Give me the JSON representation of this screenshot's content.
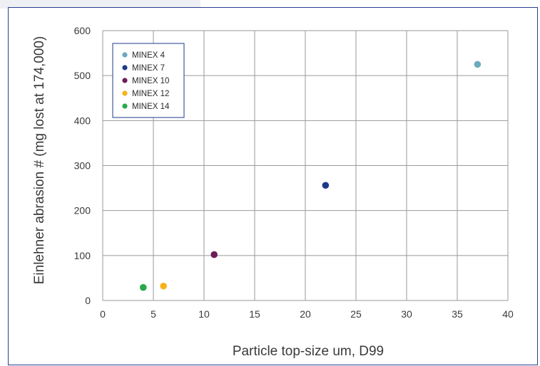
{
  "chart_data": {
    "type": "scatter",
    "title": "",
    "xlabel": "Particle top-size um, D99",
    "ylabel": "Einlehner abrasion # (mg lost at 174,000)",
    "xlim": [
      0,
      40
    ],
    "ylim": [
      0,
      600
    ],
    "xticks": [
      "0",
      "5",
      "10",
      "15",
      "20",
      "25",
      "30",
      "35",
      "40"
    ],
    "yticks": [
      "0",
      "100",
      "200",
      "300",
      "400",
      "500",
      "600"
    ],
    "grid": true,
    "legend_position": "top-left",
    "series": [
      {
        "name": "MINEX 4",
        "color": "#6aabbe",
        "points": [
          {
            "x": 37,
            "y": 525
          }
        ]
      },
      {
        "name": "MINEX 7",
        "color": "#1f3a8a",
        "points": [
          {
            "x": 22,
            "y": 256
          }
        ]
      },
      {
        "name": "MINEX 10",
        "color": "#6b1d5c",
        "points": [
          {
            "x": 11,
            "y": 102
          }
        ]
      },
      {
        "name": "MINEX 12",
        "color": "#f7b21b",
        "points": [
          {
            "x": 6,
            "y": 32
          }
        ]
      },
      {
        "name": "MINEX 14",
        "color": "#2aa84a",
        "points": [
          {
            "x": 4,
            "y": 29
          }
        ]
      }
    ]
  }
}
